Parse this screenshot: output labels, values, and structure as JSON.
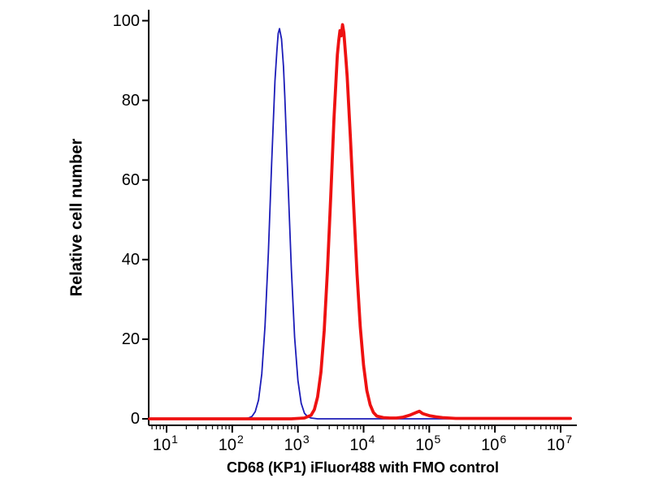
{
  "chart_data": {
    "type": "line",
    "title": "",
    "xlabel": "CD68 (KP1) iFluor488 with FMO control",
    "ylabel": "Relative cell number",
    "x_scale": "log10",
    "x_tick_base": "10",
    "x_ticks_exponents": [
      1,
      2,
      3,
      4,
      5,
      6,
      7
    ],
    "y_ticks": [
      0,
      20,
      40,
      60,
      80,
      100
    ],
    "ylim": [
      0,
      100
    ],
    "xlim_log": [
      1,
      7
    ],
    "grid": false,
    "legend": "none",
    "axis_color": "#000000",
    "series": [
      {
        "name": "FMO control",
        "color": "#1c1cb8",
        "width": 1.8,
        "peak_log10x": 2.72,
        "peak_y": 98,
        "points": [
          [
            0.74,
            0
          ],
          [
            1.0,
            0
          ],
          [
            1.5,
            0
          ],
          [
            2.0,
            0
          ],
          [
            2.15,
            0
          ],
          [
            2.25,
            0.2
          ],
          [
            2.3,
            0.6
          ],
          [
            2.35,
            1.8
          ],
          [
            2.4,
            4.7
          ],
          [
            2.45,
            11.3
          ],
          [
            2.5,
            23.4
          ],
          [
            2.55,
            41.7
          ],
          [
            2.6,
            64.0
          ],
          [
            2.65,
            84.8
          ],
          [
            2.68,
            92.5
          ],
          [
            2.7,
            96.8
          ],
          [
            2.72,
            98.0
          ],
          [
            2.75,
            95.4
          ],
          [
            2.78,
            88.5
          ],
          [
            2.8,
            81.1
          ],
          [
            2.85,
            59.4
          ],
          [
            2.9,
            37.6
          ],
          [
            2.95,
            20.5
          ],
          [
            3.0,
            9.6
          ],
          [
            3.05,
            3.9
          ],
          [
            3.1,
            1.4
          ],
          [
            3.15,
            0.5
          ],
          [
            3.2,
            0.2
          ],
          [
            3.3,
            0
          ],
          [
            3.6,
            0
          ],
          [
            4.0,
            0
          ],
          [
            4.5,
            0
          ],
          [
            5.0,
            0
          ],
          [
            5.5,
            0
          ],
          [
            6.0,
            0
          ],
          [
            6.5,
            0
          ],
          [
            7.0,
            0
          ],
          [
            7.15,
            0
          ]
        ]
      },
      {
        "name": "CD68 (KP1) iFluor488",
        "color": "#ee1111",
        "width": 3.8,
        "peak_log10x": 3.68,
        "peak_y": 99,
        "points": [
          [
            0.74,
            0
          ],
          [
            1.0,
            0
          ],
          [
            1.5,
            0
          ],
          [
            2.0,
            0
          ],
          [
            2.5,
            0
          ],
          [
            2.9,
            0
          ],
          [
            3.0,
            0.1
          ],
          [
            3.1,
            0.2
          ],
          [
            3.2,
            0.9
          ],
          [
            3.25,
            2.3
          ],
          [
            3.3,
            5.5
          ],
          [
            3.35,
            11.7
          ],
          [
            3.4,
            22.1
          ],
          [
            3.45,
            37.2
          ],
          [
            3.5,
            56.0
          ],
          [
            3.55,
            75.6
          ],
          [
            3.6,
            91.4
          ],
          [
            3.62,
            94.8
          ],
          [
            3.64,
            97.5
          ],
          [
            3.66,
            96.2
          ],
          [
            3.68,
            99.0
          ],
          [
            3.7,
            97.0
          ],
          [
            3.73,
            90.5
          ],
          [
            3.75,
            86.0
          ],
          [
            3.8,
            70.5
          ],
          [
            3.85,
            53.0
          ],
          [
            3.9,
            36.5
          ],
          [
            3.95,
            23.1
          ],
          [
            4.0,
            13.4
          ],
          [
            4.05,
            7.1
          ],
          [
            4.1,
            3.5
          ],
          [
            4.15,
            1.6
          ],
          [
            4.2,
            0.7
          ],
          [
            4.3,
            0.3
          ],
          [
            4.4,
            0.2
          ],
          [
            4.5,
            0.2
          ],
          [
            4.6,
            0.4
          ],
          [
            4.7,
            0.9
          ],
          [
            4.8,
            1.6
          ],
          [
            4.85,
            1.9
          ],
          [
            4.9,
            1.3
          ],
          [
            5.0,
            0.8
          ],
          [
            5.1,
            0.5
          ],
          [
            5.2,
            0.3
          ],
          [
            5.4,
            0.1
          ],
          [
            5.6,
            0.1
          ],
          [
            6.0,
            0.1
          ],
          [
            6.5,
            0.1
          ],
          [
            7.0,
            0.1
          ],
          [
            7.15,
            0.1
          ]
        ]
      }
    ]
  }
}
